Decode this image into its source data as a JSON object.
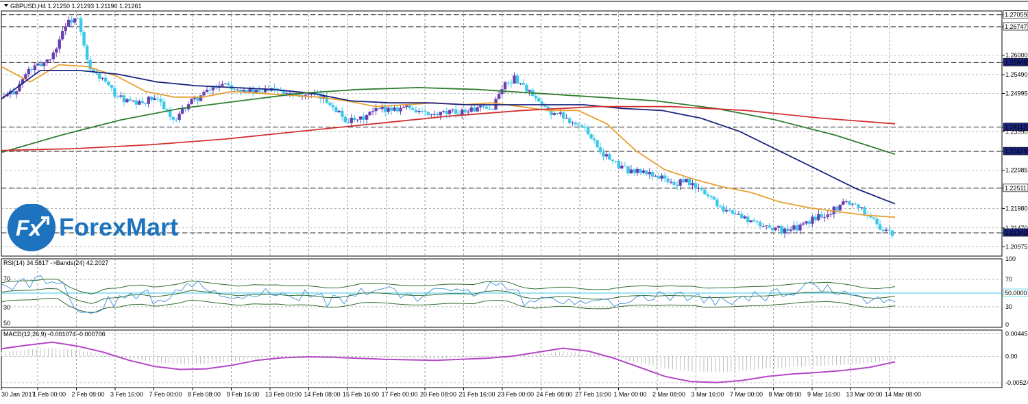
{
  "chart_data": [
    {
      "type": "candlestick",
      "title": "GBPUSD,H4  1.21250 1.21293 1.21196 1.21261",
      "ylim": [
        1.2073,
        1.2716
      ],
      "price_ticks": [
        "1.27059",
        "1.26747",
        "1.26000",
        "1.25808",
        "1.25490",
        "1.24995",
        "1.24112",
        "1.23990",
        "1.23476",
        "1.22985",
        "1.22511",
        "1.21980",
        "1.21470",
        "1.21340",
        "1.20975"
      ],
      "highlighted_levels": [
        {
          "value": 1.27059,
          "label": "1.27059",
          "color": "#ffffff",
          "text_color": "#000000"
        },
        {
          "value": 1.26747,
          "label": "1.26747",
          "color": "#ffffff",
          "text_color": "#000000"
        },
        {
          "value": 1.25808,
          "label": "1.25808",
          "color": "#1a237e",
          "text_color": "#ffffff"
        },
        {
          "value": 1.24112,
          "label": "1.24112",
          "color": "#1a237e",
          "text_color": "#ffffff"
        },
        {
          "value": 1.23476,
          "label": "1.23476",
          "color": "#1a237e",
          "text_color": "#ffffff"
        },
        {
          "value": 1.22511,
          "label": "1.22511",
          "color": "#ffffff",
          "text_color": "#000000"
        },
        {
          "value": 1.2134,
          "label": "1.21340",
          "color": "#1a237e",
          "text_color": "#ffffff"
        }
      ],
      "time_labels": [
        "30 Jan 2017",
        "1 Feb 00:00",
        "2 Feb 08:00",
        "3 Feb 16:00",
        "7 Feb 00:00",
        "8 Feb 08:00",
        "9 Feb 16:00",
        "13 Feb 00:00",
        "14 Feb 08:00",
        "15 Feb 16:00",
        "17 Feb 00:00",
        "20 Feb 08:00",
        "21 Feb 16:00",
        "23 Feb 00:00",
        "24 Feb 08:00",
        "27 Feb 16:00",
        "1 Mar 00:00",
        "2 Mar 08:00",
        "3 Mar 16:00",
        "7 Mar 00:00",
        "8 Mar 08:00",
        "9 Mar 16:00",
        "13 Mar 00:00",
        "14 Mar 08:00"
      ],
      "close_path": [
        1.249,
        1.251,
        1.256,
        1.2575,
        1.26,
        1.268,
        1.27,
        1.256,
        1.254,
        1.25,
        1.248,
        1.247,
        1.2485,
        1.2475,
        1.242,
        1.247,
        1.249,
        1.251,
        1.253,
        1.2515,
        1.251,
        1.25,
        1.252,
        1.2505,
        1.25,
        1.2495,
        1.249,
        1.247,
        1.243,
        1.2425,
        1.2445,
        1.246,
        1.246,
        1.2465,
        1.2455,
        1.244,
        1.2445,
        1.245,
        1.2455,
        1.246,
        1.2455,
        1.252,
        1.254,
        1.251,
        1.247,
        1.245,
        1.244,
        1.242,
        1.24,
        1.235,
        1.232,
        1.23,
        1.2295,
        1.229,
        1.228,
        1.226,
        1.227,
        1.225,
        1.223,
        1.22,
        1.2185,
        1.217,
        1.2155,
        1.215,
        1.214,
        1.2145,
        1.216,
        1.218,
        1.219,
        1.2215,
        1.221,
        1.218,
        1.215,
        1.2126
      ],
      "series": [
        {
          "name": "",
          "color": "#e8a030",
          "values": [
            1.257,
            1.253,
            1.2575,
            1.257,
            1.2545,
            1.2505,
            1.249,
            1.249,
            1.2505,
            1.25,
            1.2495,
            1.249,
            1.248,
            1.2465,
            1.247,
            1.2475,
            1.247,
            1.2475,
            1.2465,
            1.2455,
            1.2455,
            1.242,
            1.235,
            1.23,
            1.2275,
            1.2255,
            1.224,
            1.2215,
            1.22,
            1.219,
            1.218,
            1.2175
          ]
        },
        {
          "name": "",
          "color": "#1a237e",
          "values": [
            1.2485,
            1.256,
            1.256,
            1.255,
            1.253,
            1.252,
            1.2515,
            1.251,
            1.25,
            1.248,
            1.2475,
            1.2475,
            1.247,
            1.247,
            1.247,
            1.247,
            1.246,
            1.2455,
            1.2435,
            1.24,
            1.235,
            1.23,
            1.225,
            1.221
          ]
        },
        {
          "name": "",
          "color": "#2e7d2e",
          "values": [
            1.2345,
            1.239,
            1.243,
            1.246,
            1.248,
            1.25,
            1.251,
            1.2515,
            1.251,
            1.25,
            1.249,
            1.248,
            1.246,
            1.243,
            1.239,
            1.234
          ]
        },
        {
          "name": "",
          "color": "#d32f2f",
          "values": [
            1.235,
            1.2355,
            1.2365,
            1.238,
            1.24,
            1.242,
            1.244,
            1.2455,
            1.2465,
            1.2465,
            1.2455,
            1.2435,
            1.242
          ]
        }
      ]
    },
    {
      "type": "line",
      "title": "RSI(14) 34.5817  ->Bands(24) 42.2027",
      "ylim": [
        0,
        100
      ],
      "ticks_right": [
        "100",
        "70",
        "30",
        "0"
      ],
      "ticks_left": [
        "70",
        "30",
        "50"
      ],
      "marker_label": "50.0000",
      "marker_value": 50
    },
    {
      "type": "line",
      "title": "MACD(12,26,9) -0.001074 -0.000706",
      "ylim": [
        -0.0062,
        0.0052
      ],
      "ticks_right": [
        "0.00445",
        "0.00",
        "-0.00524"
      ],
      "values": [
        0.0015,
        0.0022,
        0.0028,
        0.002,
        0.0008,
        -0.0008,
        -0.002,
        -0.0026,
        -0.0025,
        -0.0018,
        -0.0008,
        -0.0003,
        -0.0001,
        -0.0002,
        -0.0004,
        -0.0006,
        -0.0007,
        -0.0008,
        -0.0006,
        -0.0004,
        0.0,
        0.0008,
        0.0016,
        0.001,
        -0.0004,
        -0.0022,
        -0.004,
        -0.005,
        -0.0052,
        -0.0048,
        -0.004,
        -0.0035,
        -0.0032,
        -0.0028,
        -0.0022,
        -0.0011
      ]
    }
  ],
  "logo": {
    "prefix": "Fx",
    "wordmark": "ForexMart"
  }
}
